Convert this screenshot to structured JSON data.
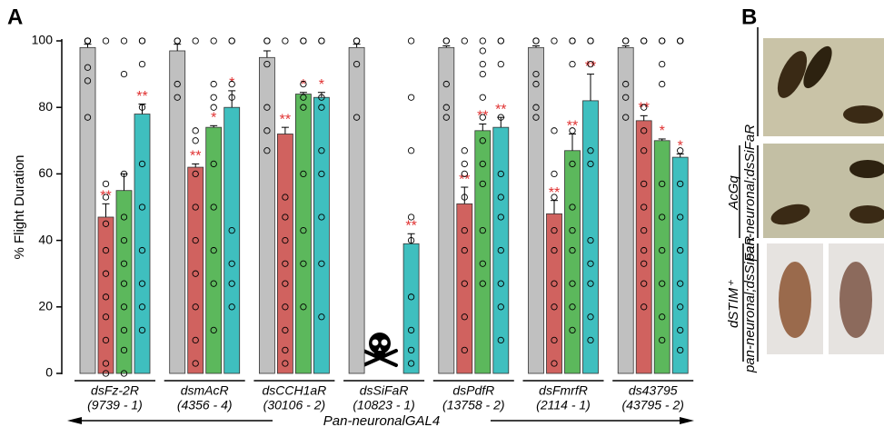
{
  "panel_labels": [
    "A",
    "B"
  ],
  "chart_data": {
    "type": "bar",
    "ylabel": "% Flight Duration",
    "xlabel": "Pan-neuronalGAL4",
    "categories": [
      "dsFz-2R",
      "dsmAcR",
      "dsCCH1aR",
      "dsSiFaR",
      "dsPdfR",
      "dsFmrfR",
      "ds43795"
    ],
    "category_ids": [
      "(9739 - 1)",
      "(4356 - 4)",
      "(30106 - 2)",
      "(10823 - 1)",
      "(13758 - 2)",
      "(2114 - 1)",
      "(43795 - 2)"
    ],
    "ylim": [
      0,
      100
    ],
    "yticks": [
      0,
      20,
      40,
      60,
      80,
      100
    ],
    "series": [
      {
        "color": "#c0c0c0",
        "values": [
          98,
          97,
          95,
          98,
          98,
          98,
          98
        ],
        "errors": [
          1,
          2,
          2,
          1,
          0.5,
          0.5,
          0.5
        ],
        "significance": [
          null,
          null,
          null,
          null,
          null,
          null,
          null
        ],
        "points": [
          [
            100,
            100,
            100,
            92,
            88,
            77
          ],
          [
            100,
            100,
            87,
            83
          ],
          [
            100,
            100,
            93,
            80,
            73,
            67
          ],
          [
            100,
            100,
            93,
            77
          ],
          [
            100,
            100,
            87,
            80,
            77
          ],
          [
            100,
            100,
            90,
            87,
            80,
            77
          ],
          [
            100,
            100,
            87,
            83,
            77
          ]
        ]
      },
      {
        "color": "#d0625f",
        "values": [
          47,
          62,
          72,
          null,
          51,
          48,
          76
        ],
        "errors": [
          4,
          1,
          2,
          null,
          5,
          4,
          1.5
        ],
        "significance": [
          "**",
          "**",
          "**",
          null,
          "**",
          "**",
          "**"
        ],
        "points": [
          [
            100,
            57,
            53,
            45,
            37,
            30,
            23,
            17,
            10,
            3,
            0
          ],
          [
            100,
            73,
            70,
            60,
            50,
            40,
            30,
            20,
            10,
            3
          ],
          [
            100,
            53,
            47,
            40,
            33,
            27,
            20,
            13,
            7,
            3
          ],
          null,
          [
            100,
            67,
            63,
            60,
            53,
            43,
            37,
            27,
            17,
            7
          ],
          [
            100,
            73,
            60,
            53,
            43,
            37,
            27,
            20,
            10,
            3
          ],
          [
            100,
            100,
            80,
            73,
            67,
            57,
            50,
            43,
            37,
            33,
            27,
            20
          ]
        ]
      },
      {
        "color": "#5cb85c",
        "values": [
          55,
          74,
          84,
          null,
          73,
          67,
          70
        ],
        "errors": [
          5,
          0.5,
          0.5,
          null,
          2,
          5,
          0.5
        ],
        "significance": [
          null,
          "*",
          "*",
          null,
          "**",
          "**",
          "*"
        ],
        "points": [
          [
            100,
            90,
            60,
            47,
            40,
            33,
            27,
            20,
            13,
            7,
            0
          ],
          [
            100,
            87,
            83,
            80,
            63,
            50,
            37,
            27,
            13
          ],
          [
            100,
            100,
            87,
            83,
            80,
            60,
            43,
            33,
            20
          ],
          null,
          [
            100,
            97,
            93,
            90,
            83,
            77,
            70,
            63,
            57,
            43,
            33,
            27
          ],
          [
            100,
            100,
            93,
            73,
            63,
            50,
            43,
            37,
            27,
            20,
            13
          ],
          [
            100,
            100,
            93,
            87,
            57,
            47,
            37,
            27,
            17,
            10
          ]
        ]
      },
      {
        "color": "#3fbfbf",
        "values": [
          78,
          80,
          83,
          39,
          74,
          82,
          65
        ],
        "errors": [
          3,
          5,
          1.5,
          3,
          3,
          8,
          1
        ],
        "significance": [
          "**",
          "*",
          "*",
          "**",
          "**",
          "**",
          "*"
        ],
        "points": [
          [
            100,
            100,
            93,
            80,
            63,
            50,
            37,
            27,
            20,
            13
          ],
          [
            100,
            100,
            87,
            83,
            43,
            33,
            27,
            20
          ],
          [
            100,
            100,
            83,
            80,
            67,
            60,
            47,
            33,
            17
          ],
          [
            100,
            83,
            67,
            47,
            40,
            23,
            13,
            7,
            3
          ],
          [
            100,
            100,
            93,
            77,
            60,
            53,
            47,
            37,
            27,
            20,
            10
          ],
          [
            100,
            100,
            93,
            67,
            63,
            40,
            33,
            27,
            17,
            10
          ],
          [
            100,
            100,
            100,
            67,
            57,
            47,
            37,
            27,
            20,
            13,
            7
          ]
        ]
      }
    ]
  },
  "panel_b": {
    "labels": [
      "AcGq",
      "pan-neuronal;dsSiFaR",
      "dSTIM⁺"
    ]
  }
}
